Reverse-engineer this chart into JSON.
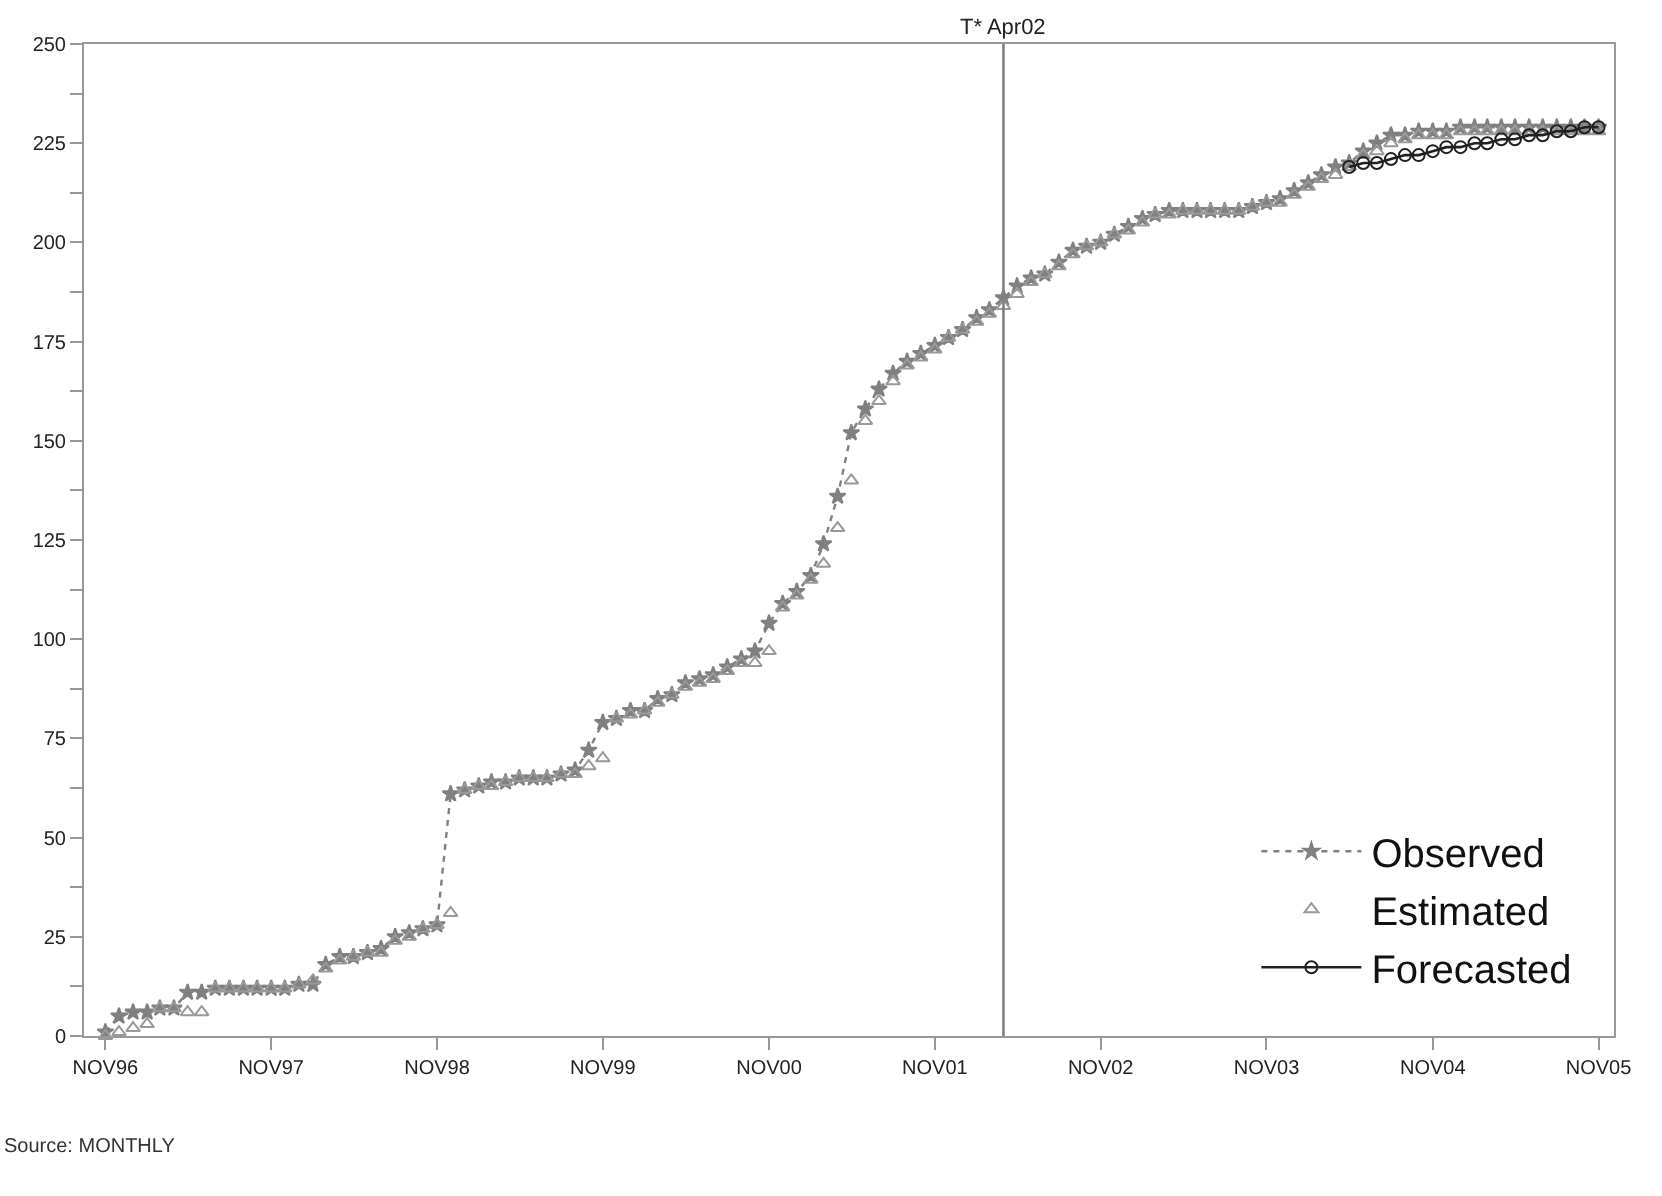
{
  "chart_data": {
    "type": "line",
    "x": [
      "1996-11",
      "1996-12",
      "1997-01",
      "1997-02",
      "1997-03",
      "1997-04",
      "1997-05",
      "1997-06",
      "1997-07",
      "1997-08",
      "1997-09",
      "1997-10",
      "1997-11",
      "1997-12",
      "1998-01",
      "1998-02",
      "1998-03",
      "1998-04",
      "1998-05",
      "1998-06",
      "1998-07",
      "1998-08",
      "1998-09",
      "1998-10",
      "1998-11",
      "1998-12",
      "1999-01",
      "1999-02",
      "1999-03",
      "1999-04",
      "1999-05",
      "1999-06",
      "1999-07",
      "1999-08",
      "1999-09",
      "1999-10",
      "1999-11",
      "1999-12",
      "2000-01",
      "2000-02",
      "2000-03",
      "2000-04",
      "2000-05",
      "2000-06",
      "2000-07",
      "2000-08",
      "2000-09",
      "2000-10",
      "2000-11",
      "2000-12",
      "2001-01",
      "2001-02",
      "2001-03",
      "2001-04",
      "2001-05",
      "2001-06",
      "2001-07",
      "2001-08",
      "2001-09",
      "2001-10",
      "2001-11",
      "2001-12",
      "2002-01",
      "2002-02",
      "2002-03",
      "2002-04",
      "2002-05",
      "2002-06",
      "2002-07",
      "2002-08",
      "2002-09",
      "2002-10",
      "2002-11",
      "2002-12",
      "2003-01",
      "2003-02",
      "2003-03",
      "2003-04",
      "2003-05",
      "2003-06",
      "2003-07",
      "2003-08",
      "2003-09",
      "2003-10",
      "2003-11",
      "2003-12",
      "2004-01",
      "2004-02",
      "2004-03",
      "2004-04",
      "2004-05",
      "2004-06",
      "2004-07",
      "2004-08",
      "2004-09",
      "2004-10",
      "2004-11",
      "2004-12",
      "2005-01",
      "2005-02",
      "2005-03",
      "2005-04",
      "2005-05",
      "2005-06",
      "2005-07",
      "2005-08",
      "2005-09",
      "2005-10",
      "2005-11"
    ],
    "series": [
      {
        "name": "Observed",
        "color": "#808080",
        "marker": "star",
        "line_style": "dotted",
        "values": [
          1,
          5,
          6,
          6,
          7,
          7,
          11,
          11,
          12,
          12,
          12,
          12,
          12,
          12,
          13,
          13,
          18,
          20,
          20,
          21,
          22,
          25,
          26,
          27,
          28,
          61,
          62,
          63,
          64,
          64,
          65,
          65,
          65,
          66,
          67,
          72,
          79,
          80,
          82,
          82,
          85,
          86,
          89,
          90,
          91,
          93,
          95,
          97,
          104,
          109,
          112,
          116,
          124,
          136,
          152,
          158,
          163,
          167,
          170,
          172,
          174,
          176,
          178,
          181,
          183,
          186,
          189,
          191,
          192,
          195,
          198,
          199,
          200,
          202,
          204,
          206,
          207,
          208,
          208,
          208,
          208,
          208,
          208,
          209,
          210,
          211,
          213,
          215,
          217,
          219,
          220,
          223,
          225,
          227,
          227,
          228,
          228,
          228,
          229,
          229,
          229,
          229,
          229,
          229,
          229,
          229,
          229,
          229,
          229
        ]
      },
      {
        "name": "Estimated",
        "color": "#999999",
        "type": "scatter",
        "marker": "triangle",
        "values": [
          0,
          1,
          2,
          3,
          7,
          7,
          6,
          6,
          12,
          12,
          12,
          12,
          12,
          12,
          13,
          14,
          17,
          19,
          20,
          21,
          21,
          24,
          25,
          27,
          28,
          31,
          62,
          63,
          63,
          64,
          65,
          65,
          65,
          66,
          66,
          68,
          70,
          80,
          81,
          82,
          84,
          86,
          88,
          89,
          90,
          92,
          94,
          94,
          97,
          108,
          111,
          115,
          119,
          128,
          140,
          155,
          160,
          165,
          169,
          171,
          173,
          176,
          178,
          180,
          182,
          184,
          187,
          190,
          192,
          194,
          197,
          199,
          200,
          202,
          203,
          205,
          207,
          207,
          208,
          208,
          208,
          208,
          208,
          209,
          210,
          210,
          212,
          214,
          216,
          217,
          219,
          222,
          223,
          225,
          226,
          227,
          227,
          227,
          228,
          228,
          228,
          228,
          228,
          228,
          228,
          228,
          228,
          228,
          228
        ]
      },
      {
        "name": "Forecasted",
        "color": "#202020",
        "marker": "circle",
        "line_style": "solid",
        "x": [
          "2004-05",
          "2004-06",
          "2004-07",
          "2004-08",
          "2004-09",
          "2004-10",
          "2004-11",
          "2004-12",
          "2005-01",
          "2005-02",
          "2005-03",
          "2005-04",
          "2005-05",
          "2005-06",
          "2005-07",
          "2005-08",
          "2005-09",
          "2005-10",
          "2005-11"
        ],
        "values": [
          219,
          220,
          220,
          221,
          222,
          222,
          223,
          224,
          224,
          225,
          225,
          226,
          226,
          227,
          227,
          228,
          228,
          229,
          229
        ]
      }
    ],
    "xlim": [
      "1996-09-15",
      "2005-12-05"
    ],
    "xticks": [
      {
        "value": "1996-11",
        "label": "NOV96"
      },
      {
        "value": "1997-11",
        "label": "NOV97"
      },
      {
        "value": "1998-11",
        "label": "NOV98"
      },
      {
        "value": "1999-11",
        "label": "NOV99"
      },
      {
        "value": "2000-11",
        "label": "NOV00"
      },
      {
        "value": "2001-11",
        "label": "NOV01"
      },
      {
        "value": "2002-11",
        "label": "NOV02"
      },
      {
        "value": "2003-11",
        "label": "NOV03"
      },
      {
        "value": "2004-11",
        "label": "NOV04"
      },
      {
        "value": "2005-11",
        "label": "NOV05"
      }
    ],
    "ylim": [
      0,
      250
    ],
    "yticks": [
      0,
      {
        "value": 12.5,
        "label": null
      },
      25,
      {
        "value": 37.5,
        "label": null
      },
      50,
      {
        "value": 62.5,
        "label": null
      },
      75,
      {
        "value": 87.5,
        "label": null
      },
      100,
      {
        "value": 112.5,
        "label": null
      },
      125,
      {
        "value": 137.5,
        "label": null
      },
      150,
      {
        "value": 162.5,
        "label": null
      },
      175,
      {
        "value": 187.5,
        "label": null
      },
      200,
      {
        "value": 212.5,
        "label": null
      },
      225,
      {
        "value": 237.5,
        "label": null
      },
      250
    ],
    "ref_lines": [
      {
        "axis": "x",
        "value": "2002-04",
        "label": "T* Apr02",
        "color": "#808080"
      }
    ],
    "annotations": [
      "Source: MONTHLY"
    ],
    "legend": "bottom right"
  }
}
